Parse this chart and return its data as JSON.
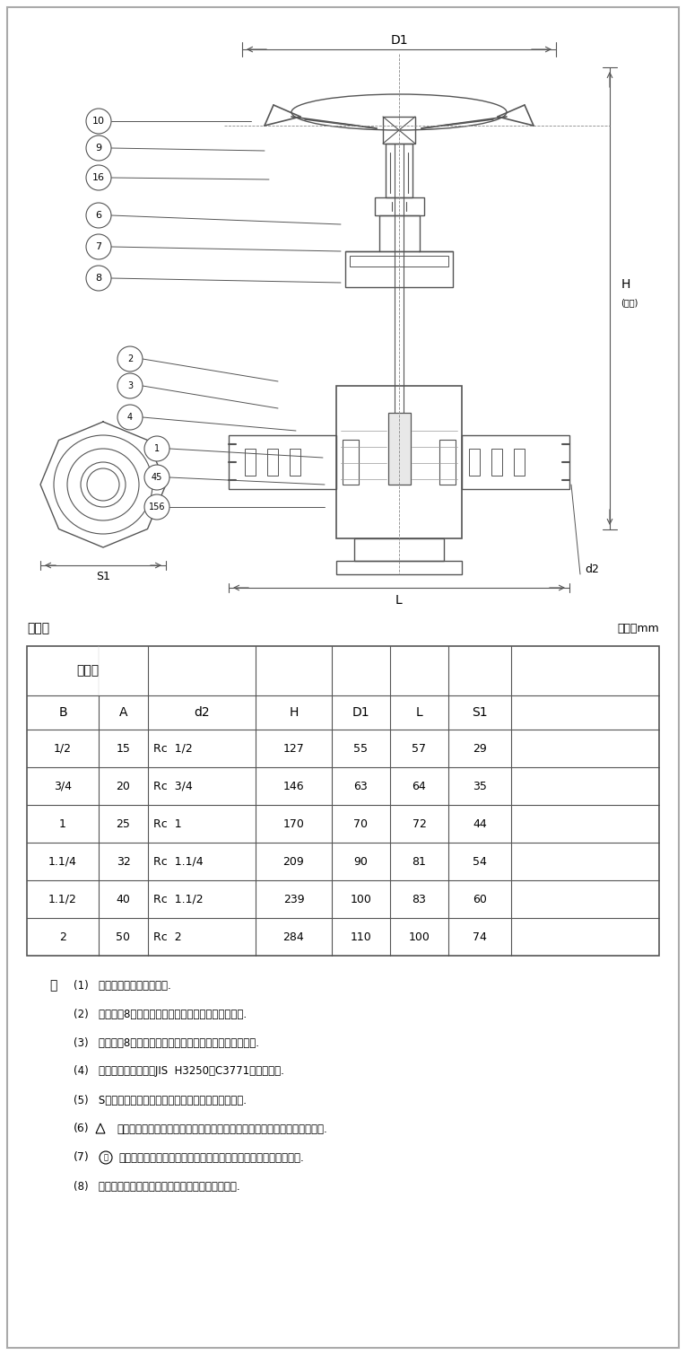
{
  "bg_color": "#ffffff",
  "line_color": "#555555",
  "title_section": "寸法表",
  "unit_label": "単位：mm",
  "table_header_row1": [
    "呼び径",
    "",
    "d2",
    "H",
    "D1",
    "L",
    "S1",
    ""
  ],
  "table_header_row2": [
    "B",
    "A",
    "d2",
    "H",
    "D1",
    "L",
    "S1",
    ""
  ],
  "table_data": [
    [
      "1/2",
      "15",
      "Rc  1/2",
      "127",
      "55",
      "57",
      "29",
      ""
    ],
    [
      "3/4",
      "20",
      "Rc  3/4",
      "146",
      "63",
      "64",
      "35",
      ""
    ],
    [
      "1",
      "25",
      "Rc  1",
      "170",
      "70",
      "72",
      "44",
      ""
    ],
    [
      "1.1/4",
      "32",
      "Rc  1.1/4",
      "209",
      "90",
      "81",
      "54",
      ""
    ],
    [
      "1.1/2",
      "40",
      "Rc  1.1/2",
      "239",
      "100",
      "83",
      "60",
      ""
    ],
    [
      "2",
      "50",
      "Rc  2",
      "284",
      "110",
      "100",
      "74",
      ""
    ]
  ],
  "notes": [
    "(1)   呼び径を表わしています.",
    "(2)   スパナ掛8角面に製造工場の略号を表わしています.",
    "(3)   スパナ掛8角面に製造メーカーの略号を表わしています.",
    "(4)   引張強さと伸びは、JIS  H3250のC3771と同等以上.",
    "(5)   Sは、鲛フリー銅合金材料の種類を表わしています.",
    "(6)   △ は、接水部品の全てを鲛フリー材料で製作した給水器具を表わしています.",
    "(7)   水 は、浸出性能基準に適合し、飲用に適することを表わしています.",
    "(8)   可燃性ガス・毒性ガスには使用しないでください."
  ],
  "note_label": "注",
  "diagram_labels": {
    "D1": "D1",
    "H": "H",
    "H_sub": "(全開)",
    "L": "L",
    "S1": "S1",
    "d2": "d2"
  },
  "part_numbers_left": [
    "10",
    "9",
    "16",
    "6",
    "7",
    "8"
  ],
  "part_numbers_bottom_left": [
    "2",
    "3",
    "4",
    "1",
    "45",
    "156"
  ]
}
